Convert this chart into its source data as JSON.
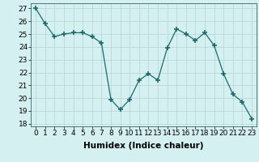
{
  "x": [
    0,
    1,
    2,
    3,
    4,
    5,
    6,
    7,
    8,
    9,
    10,
    11,
    12,
    13,
    14,
    15,
    16,
    17,
    18,
    19,
    20,
    21,
    22,
    23
  ],
  "y": [
    27,
    25.8,
    24.8,
    25.0,
    25.1,
    25.1,
    24.8,
    24.3,
    19.9,
    19.1,
    19.9,
    21.4,
    21.9,
    21.4,
    23.9,
    25.4,
    25.0,
    24.5,
    25.1,
    24.1,
    21.9,
    20.3,
    19.7,
    18.4
  ],
  "line_color": "#1a6b6b",
  "marker": "+",
  "marker_size": 4,
  "bg_color": "#d5f0f0",
  "grid_color": "#b8d8d8",
  "xlabel": "Humidex (Indice chaleur)",
  "ylim": [
    17.8,
    27.4
  ],
  "yticks": [
    18,
    19,
    20,
    21,
    22,
    23,
    24,
    25,
    26,
    27
  ],
  "xticks": [
    0,
    1,
    2,
    3,
    4,
    5,
    6,
    7,
    8,
    9,
    10,
    11,
    12,
    13,
    14,
    15,
    16,
    17,
    18,
    19,
    20,
    21,
    22,
    23
  ],
  "xtick_labels": [
    "0",
    "1",
    "2",
    "3",
    "4",
    "5",
    "6",
    "7",
    "8",
    "9",
    "10",
    "11",
    "12",
    "13",
    "14",
    "15",
    "16",
    "17",
    "18",
    "19",
    "20",
    "21",
    "22",
    "23"
  ],
  "tick_fontsize": 6.5,
  "xlabel_fontsize": 7.5,
  "line_width": 0.9
}
